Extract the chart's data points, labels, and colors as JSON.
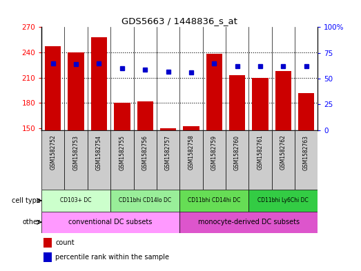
{
  "title": "GDS5663 / 1448836_s_at",
  "samples": [
    "GSM1582752",
    "GSM1582753",
    "GSM1582754",
    "GSM1582755",
    "GSM1582756",
    "GSM1582757",
    "GSM1582758",
    "GSM1582759",
    "GSM1582760",
    "GSM1582761",
    "GSM1582762",
    "GSM1582763"
  ],
  "counts": [
    247,
    240,
    258,
    180,
    182,
    150,
    153,
    238,
    213,
    210,
    218,
    192
  ],
  "percentiles": [
    65,
    64,
    65,
    60,
    59,
    57,
    56,
    65,
    62,
    62,
    62,
    62
  ],
  "ylim_left": [
    148,
    270
  ],
  "ylim_right": [
    0,
    100
  ],
  "yticks_left": [
    150,
    180,
    210,
    240,
    270
  ],
  "yticks_right": [
    0,
    25,
    50,
    75,
    100
  ],
  "cell_types": [
    {
      "label": "CD103+ DC",
      "start": 0,
      "end": 3
    },
    {
      "label": "CD11bhi CD14lo DC",
      "start": 3,
      "end": 6
    },
    {
      "label": "CD11bhi CD14hi DC",
      "start": 6,
      "end": 9
    },
    {
      "label": "CD11bhi Ly6Chi DC",
      "start": 9,
      "end": 12
    }
  ],
  "cell_type_colors": [
    "#ccffcc",
    "#99ee99",
    "#66dd55",
    "#33cc44"
  ],
  "other_groups": [
    {
      "label": "conventional DC subsets",
      "start": 0,
      "end": 6
    },
    {
      "label": "monocyte-derived DC subsets",
      "start": 6,
      "end": 12
    }
  ],
  "other_colors": [
    "#ff99ff",
    "#dd55cc"
  ],
  "bar_color": "#cc0000",
  "dot_color": "#0000cc",
  "bar_bottom": 148,
  "grid_yticks": [
    180,
    210,
    240
  ],
  "xticklabel_bg": "#cccccc"
}
